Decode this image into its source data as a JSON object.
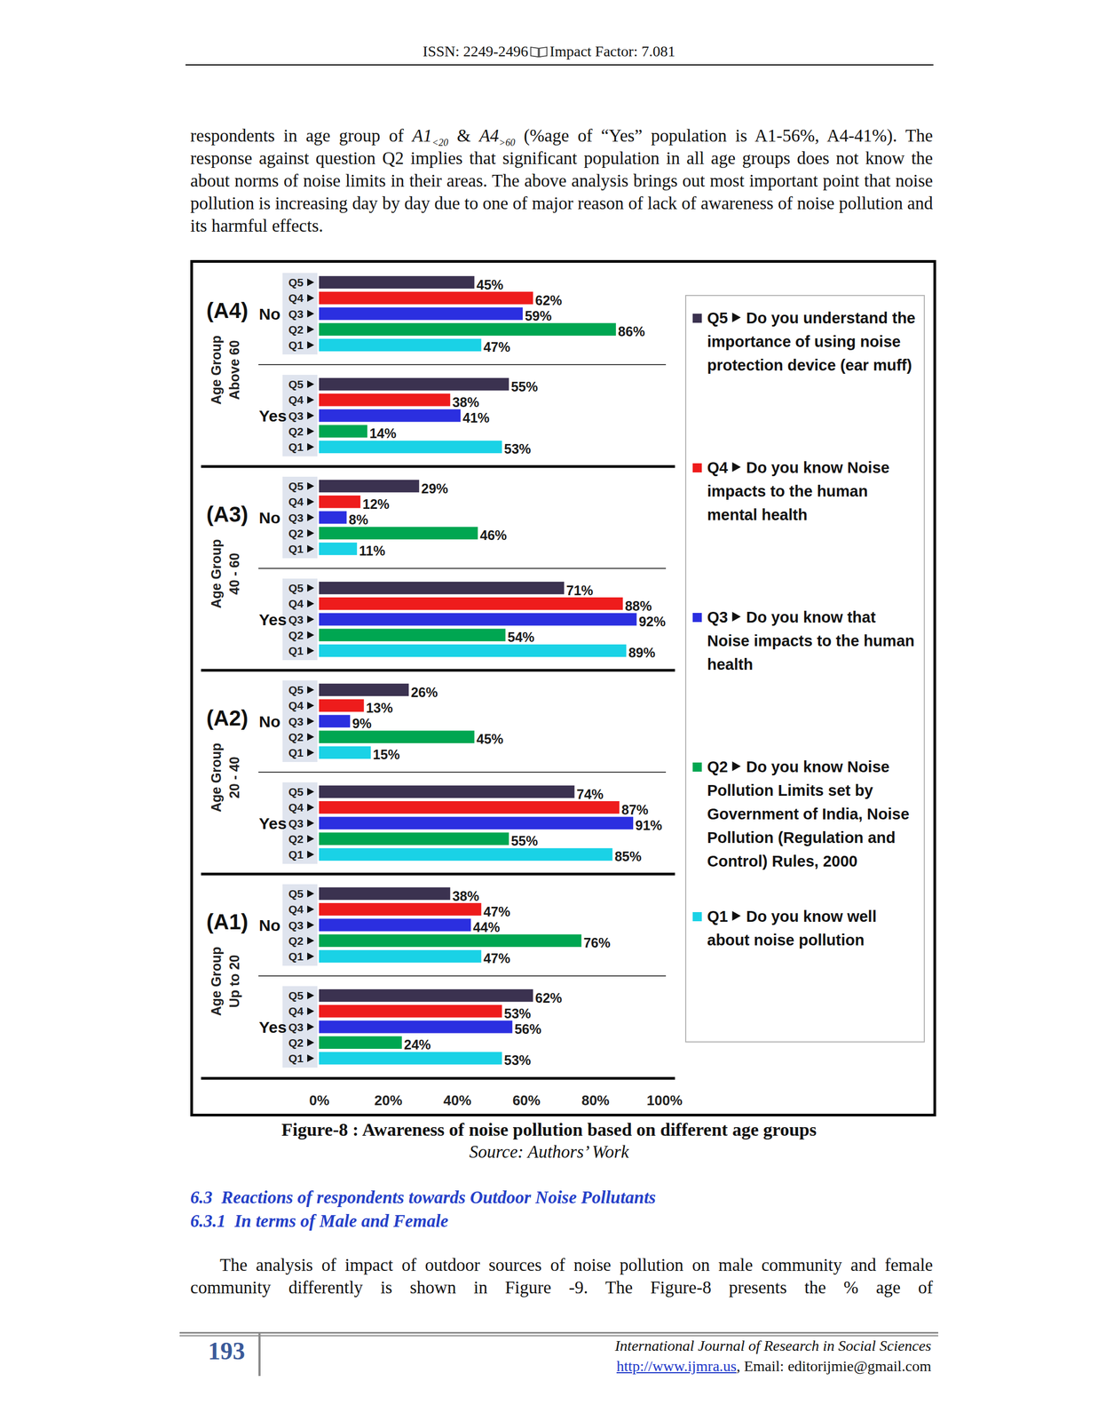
{
  "header": {
    "issn": "ISSN: 2249-2496",
    "impact_factor": "Impact Factor: 7.081"
  },
  "paragraphs": [
    {
      "runs": [
        {
          "text": "respondents in age group of "
        },
        {
          "text": "A1",
          "style": "italic"
        },
        {
          "text": "<20",
          "style": "sub"
        },
        {
          "text": " & "
        },
        {
          "text": "A4",
          "style": "italic"
        },
        {
          "text": ">60",
          "style": "sub"
        },
        {
          "text": " (%age of “Yes” population is A1-56%, A4-41%). The response against question Q2 implies that significant population in all age groups does not know the about norms of noise limits in their areas. The above analysis brings out most important point that noise pollution is increasing day by day due to one of major reason of lack of awareness of noise pollution and its harmful effects."
        }
      ]
    },
    {
      "runs": [
        {
          "text": "The analysis of impact of outdoor sources of noise pollution on male community and female community differently is shown in Figure -9. The Figure-8 presents the % age of"
        }
      ]
    }
  ],
  "chart_data": {
    "type": "bar",
    "orientation": "horizontal",
    "data_labels": true,
    "legend": "right",
    "grid": false,
    "xlim": [
      0,
      100
    ],
    "xticks": [
      {
        "value": 0,
        "label": "0%"
      },
      {
        "value": 20,
        "label": "20%"
      },
      {
        "value": 40,
        "label": "40%"
      },
      {
        "value": 60,
        "label": "60%"
      },
      {
        "value": 80,
        "label": "80%"
      },
      {
        "value": 100,
        "label": "100%"
      }
    ],
    "categories": [
      "No",
      "Yes",
      "No",
      "Yes",
      "No",
      "Yes",
      "No",
      "Yes"
    ],
    "groups": [
      {
        "code": "(A4)",
        "label": [
          "Age Group",
          "Above 60"
        ]
      },
      {
        "code": "(A3)",
        "label": [
          "Age Group",
          "40 - 60"
        ]
      },
      {
        "code": "(A2)",
        "label": [
          "Age Group",
          "20 - 40"
        ]
      },
      {
        "code": "(A1)",
        "label": [
          "Age Group",
          "Up to 20"
        ]
      }
    ],
    "series": [
      {
        "code": "Q5",
        "name": "Do you understand the importance of using noise protection device (ear muff)",
        "color": "#3b3250",
        "values": [
          45,
          55,
          29,
          71,
          26,
          74,
          38,
          62
        ],
        "value_labels": [
          "45%",
          "55%",
          "29%",
          "71%",
          "26%",
          "74%",
          "38%",
          "62%"
        ]
      },
      {
        "code": "Q4",
        "name": "Do you know Noise impacts to the human mental health",
        "color": "#ee1c1c",
        "values": [
          62,
          38,
          12,
          88,
          13,
          87,
          47,
          53
        ],
        "value_labels": [
          "62%",
          "38%",
          "12%",
          "88%",
          "13%",
          "87%",
          "47%",
          "53%"
        ]
      },
      {
        "code": "Q3",
        "name": "Do you know that Noise impacts to the human health",
        "color": "#2b2fe0",
        "values": [
          59,
          41,
          8,
          92,
          9,
          91,
          44,
          56
        ],
        "value_labels": [
          "59%",
          "41%",
          "8%",
          "92%",
          "9%",
          "91%",
          "44%",
          "56%"
        ]
      },
      {
        "code": "Q2",
        "name": "Do you know Noise Pollution Limits set by Government of India, Noise Pollution (Regulation and Control) Rules, 2000",
        "color": "#00a651",
        "values": [
          86,
          14,
          46,
          54,
          45,
          55,
          76,
          24
        ],
        "value_labels": [
          "86%",
          "14%",
          "46%",
          "54%",
          "45%",
          "55%",
          "76%",
          "24%"
        ]
      },
      {
        "code": "Q1",
        "name": "Do you know well about noise pollution",
        "color": "#1ad2e6",
        "values": [
          47,
          53,
          11,
          89,
          15,
          85,
          47,
          53
        ],
        "value_labels": [
          "47%",
          "53%",
          "11%",
          "89%",
          "15%",
          "85%",
          "47%",
          "53%"
        ]
      }
    ]
  },
  "figure": {
    "caption": "Figure-8 : Awareness of noise pollution based on different age groups",
    "source": "Source: Authors’ Work"
  },
  "headings": [
    "6.3  Reactions of respondents towards Outdoor Noise Pollutants",
    "6.3.1  In terms of Male and Female"
  ],
  "footer": {
    "page": "193",
    "journal": "International Journal of Research in Social Sciences",
    "url": "http://www.ijmra.us",
    "email": ", Email: editorijmie@gmail.com"
  }
}
